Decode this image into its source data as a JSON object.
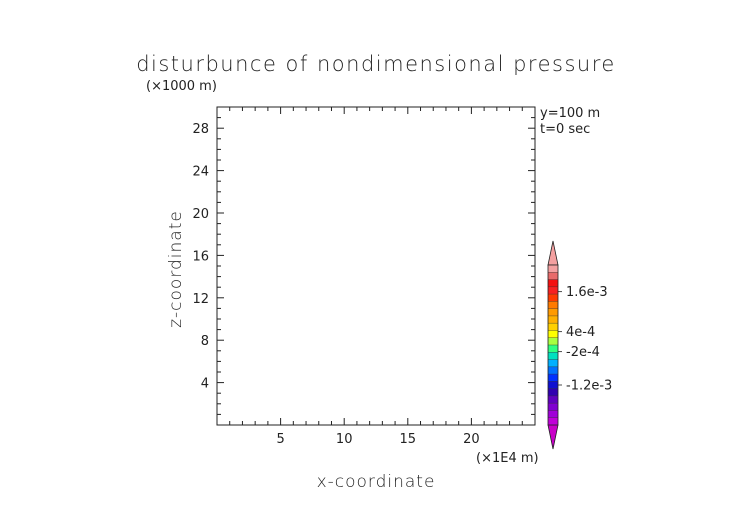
{
  "chart_data": {
    "type": "heatmap",
    "title": "disturbunce of nondimensional pressure",
    "xlabel": "x-coordinate",
    "ylabel": "z-coordinate",
    "x_units": "(×1E4 m)",
    "y_units": "(×1000 m)",
    "xlim": [
      0,
      25
    ],
    "ylim": [
      0,
      30
    ],
    "x_ticks": [
      5,
      10,
      15,
      20
    ],
    "y_ticks": [
      4,
      8,
      12,
      16,
      20,
      24,
      28
    ],
    "annotations": [
      "y=100 m",
      "t=0 sec"
    ],
    "field_values": [],
    "grid": false,
    "colorbar": {
      "position": "right",
      "extend": "both",
      "labels": [
        "1.6e-3",
        "4e-4",
        "-2e-4",
        "-1.2e-3"
      ],
      "label_values": [
        0.0016,
        0.0004,
        -0.0002,
        -0.0012
      ],
      "colors": [
        "#f4a0a0",
        "#e86a6a",
        "#f41010",
        "#f82020",
        "#ff3a00",
        "#ff7a00",
        "#ff9a00",
        "#ffb000",
        "#ffd000",
        "#ffff00",
        "#a8ff40",
        "#30ff80",
        "#00e0c0",
        "#00b0ff",
        "#0070ff",
        "#0030ff",
        "#1010d0",
        "#3000b0",
        "#6000c0",
        "#8000d0",
        "#a000d8",
        "#c000d8"
      ],
      "max_extend_color": "#f4a0a0",
      "min_extend_color": "#c800c8"
    }
  }
}
